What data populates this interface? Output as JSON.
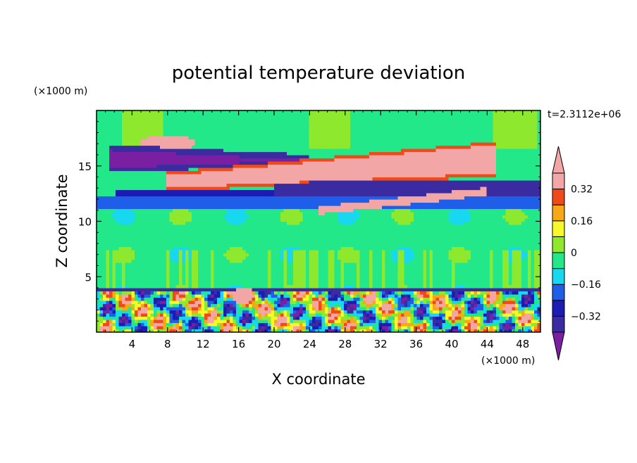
{
  "chart_data": {
    "type": "heatmap",
    "title": "potential temperature deviation",
    "xlabel": "X coordinate",
    "ylabel": "Z coordinate",
    "x_unit": "(×1000 m)",
    "y_unit": "(×1000 m)",
    "time_label": "t=2.3112e+06",
    "xlim": [
      0,
      50
    ],
    "ylim": [
      0,
      20
    ],
    "x_ticks": [
      4,
      8,
      12,
      16,
      20,
      24,
      28,
      32,
      36,
      40,
      44,
      48
    ],
    "y_ticks": [
      5,
      10,
      15
    ],
    "colorbar": {
      "levels": [
        -0.4,
        -0.32,
        -0.24,
        -0.16,
        -0.08,
        0,
        0.08,
        0.16,
        0.24,
        0.32,
        0.4
      ],
      "tick_labels": [
        "0.32",
        "0.16",
        "0",
        "−0.16",
        "−0.32"
      ],
      "tick_values": [
        0.32,
        0.16,
        0,
        -0.16,
        -0.32
      ],
      "colors": [
        "#7a1fa2",
        "#3a2ca0",
        "#1c1cb4",
        "#1f5ee8",
        "#18d8f0",
        "#22e88a",
        "#8ee82e",
        "#f7f72a",
        "#f7a817",
        "#f04a1a",
        "#f2a6a6"
      ],
      "extend": "both"
    },
    "bands": [
      {
        "z": [
          16.5,
          20
        ],
        "level": -0.04,
        "note": "upper background"
      },
      {
        "z": [
          14.2,
          17.2
        ],
        "x": [
          2,
          22
        ],
        "level": -0.44,
        "note": "upper negative core"
      },
      {
        "z": [
          12.5,
          14.0
        ],
        "x": [
          22,
          50
        ],
        "level": -0.36,
        "note": "mid negative band"
      },
      {
        "z": [
          13.0,
          15.5
        ],
        "x": [
          8,
          46
        ],
        "level": 0.44,
        "note": "tilted positive filament"
      },
      {
        "z": [
          11.0,
          12.2
        ],
        "level": -0.18,
        "note": "lower negative layer"
      },
      {
        "z": [
          4,
          11
        ],
        "level": -0.04,
        "note": "middle neutral layer"
      },
      {
        "z": [
          0,
          4
        ],
        "level": 0.0,
        "note": "turbulent boundary layer"
      }
    ]
  }
}
